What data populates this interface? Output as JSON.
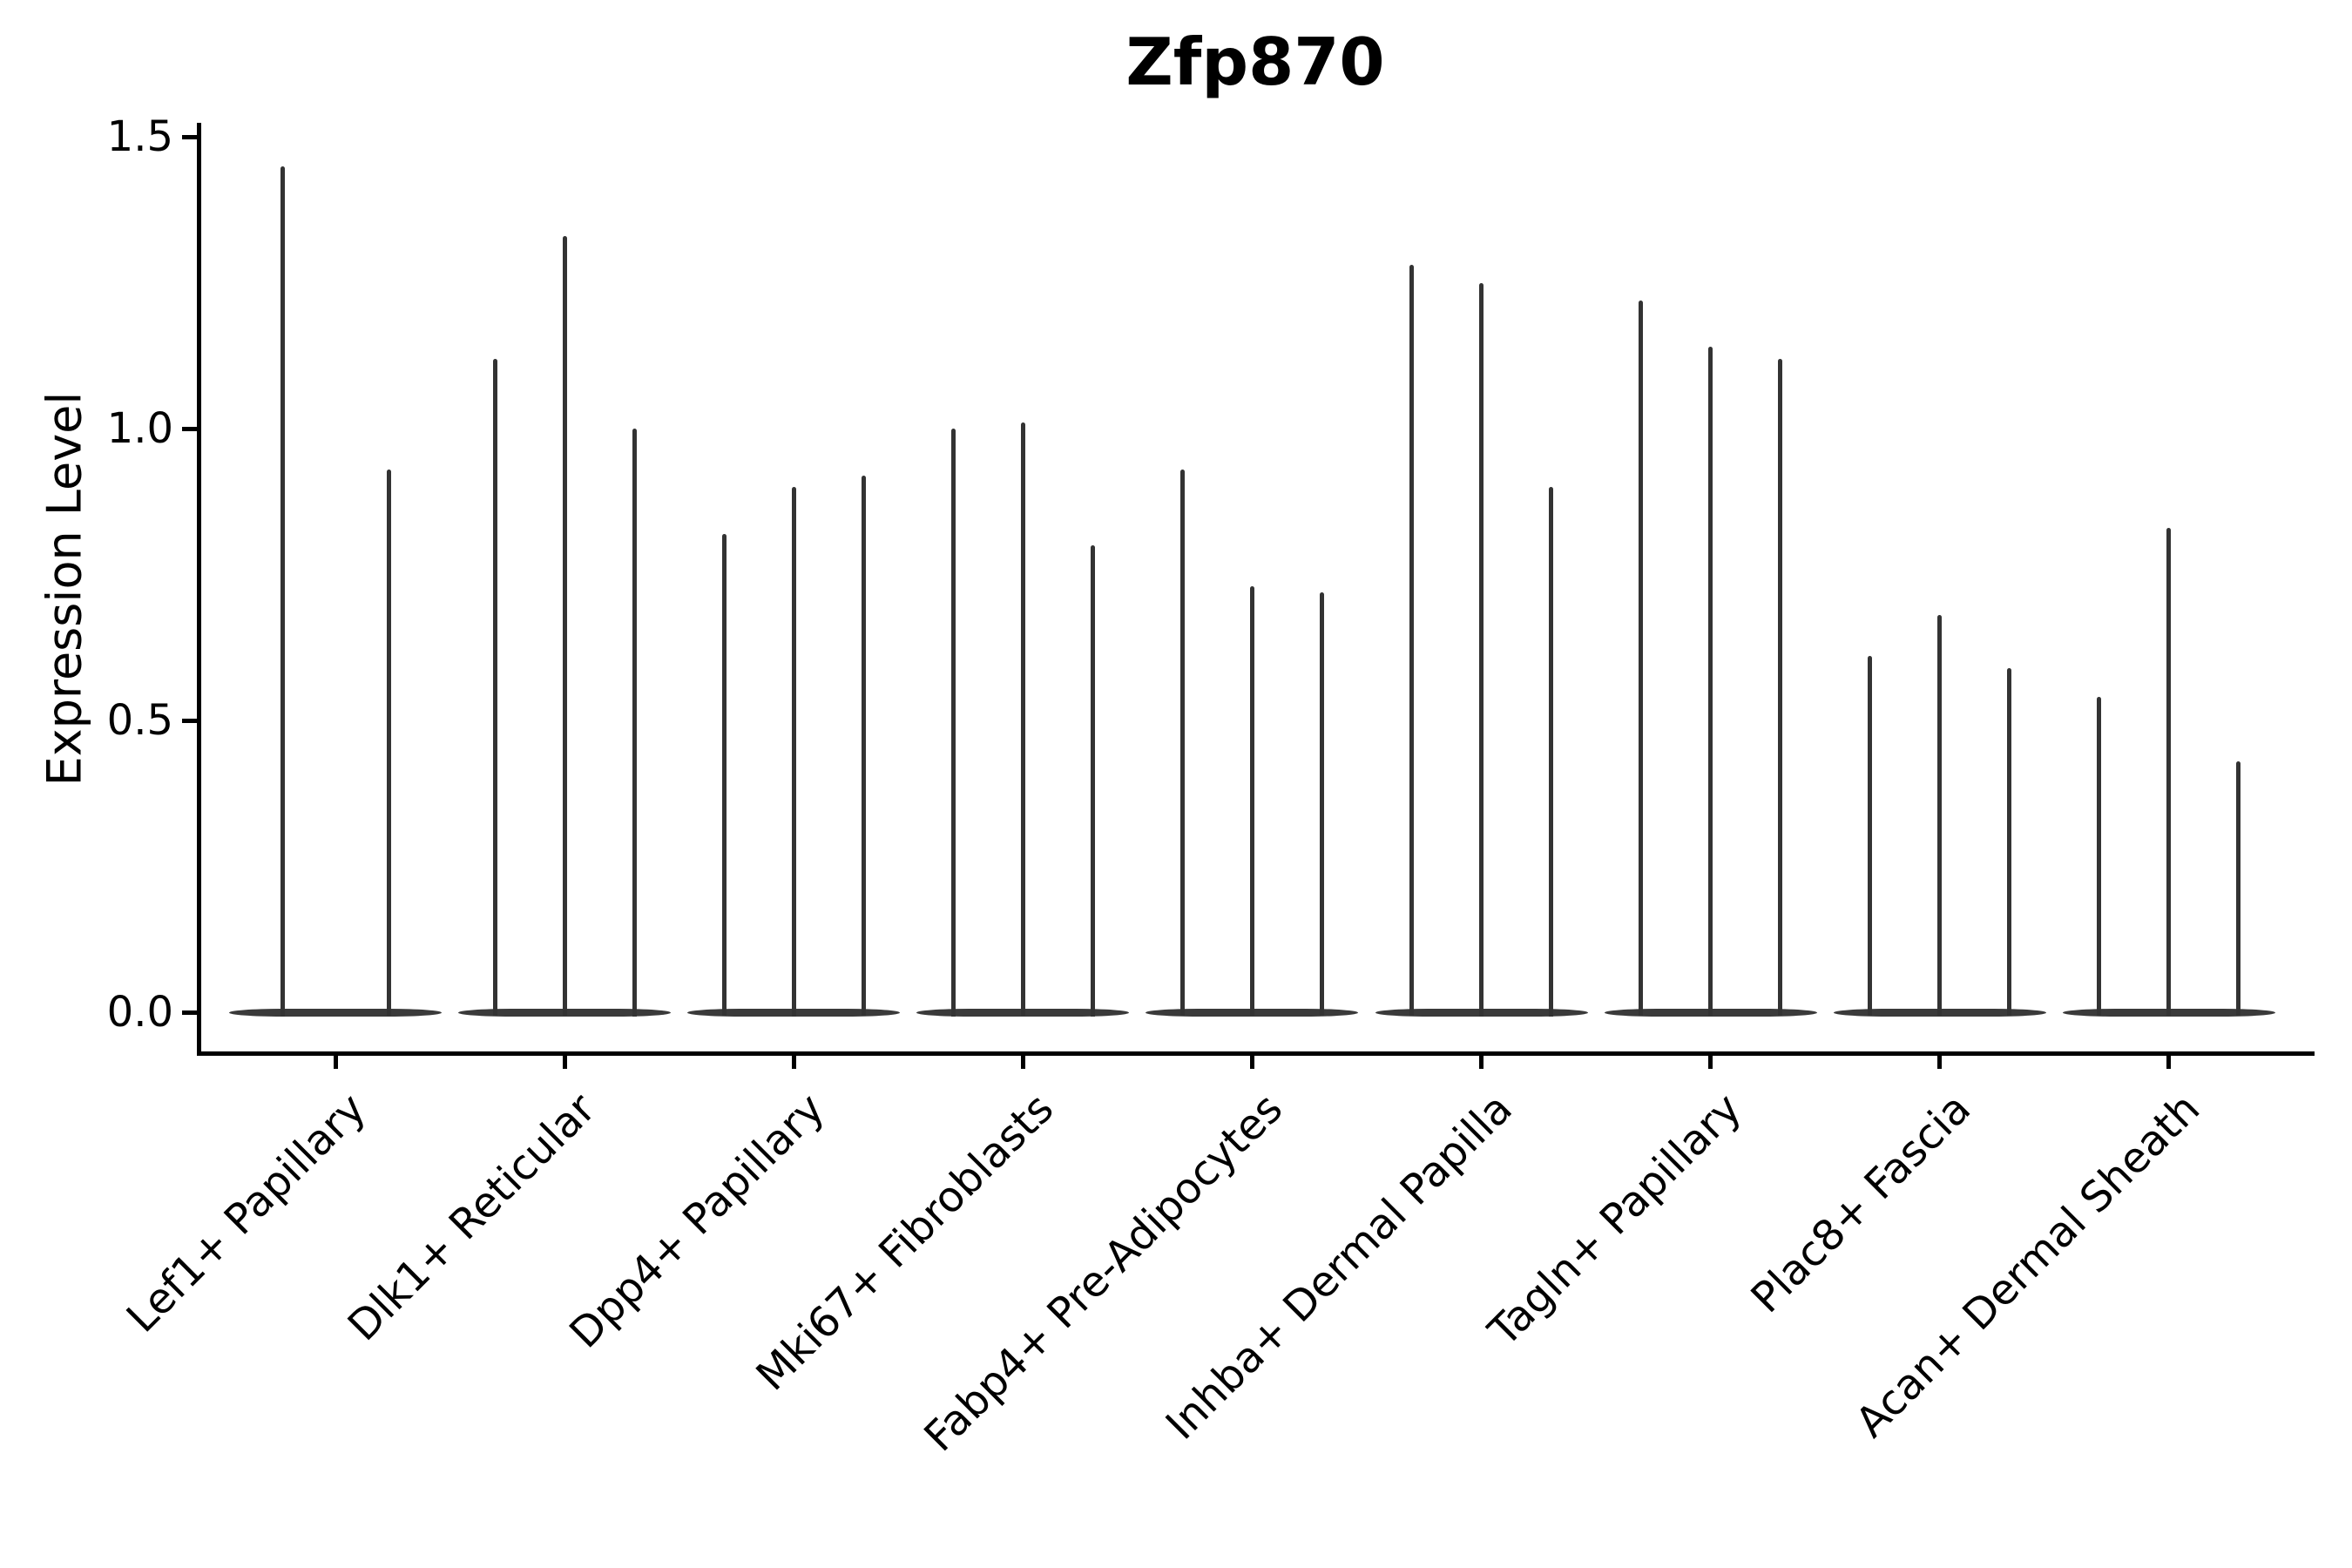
{
  "chart_data": {
    "type": "violin",
    "title": "Zfp870",
    "xlabel": "",
    "ylabel": "Expression Level",
    "ylim": [
      -0.07,
      1.53
    ],
    "yticks": [
      0.0,
      0.5,
      1.0,
      1.5
    ],
    "ytick_labels": [
      "0.0",
      "0.5",
      "1.0",
      "1.5"
    ],
    "grid": false,
    "legend": "none",
    "categories": [
      "Lef1+ Papillary",
      "Dlk1+ Reticular",
      "Dpp4+ Papillary",
      "Mki67+ Fibroblasts",
      "Fabp4+ Pre-Adipocytes",
      "Inhba+ Dermal Papilla",
      "Tagln+ Papillary",
      "Plac8+ Fascia",
      "Acan+ Dermal Sheath"
    ],
    "series": [
      {
        "category": "Lef1+ Papillary",
        "violin_maxima": [
          1.45,
          0.93
        ]
      },
      {
        "category": "Dlk1+ Reticular",
        "violin_maxima": [
          1.12,
          1.33,
          1.0
        ]
      },
      {
        "category": "Dpp4+ Papillary",
        "violin_maxima": [
          0.82,
          0.9,
          0.92
        ]
      },
      {
        "category": "Mki67+ Fibroblasts",
        "violin_maxima": [
          1.0,
          1.01,
          0.8
        ]
      },
      {
        "category": "Fabp4+ Pre-Adipocytes",
        "violin_maxima": [
          0.93,
          0.73,
          0.72
        ]
      },
      {
        "category": "Inhba+ Dermal Papilla",
        "violin_maxima": [
          1.28,
          1.25,
          0.9
        ]
      },
      {
        "category": "Tagln+ Papillary",
        "violin_maxima": [
          1.22,
          1.14,
          1.12
        ]
      },
      {
        "category": "Plac8+ Fascia",
        "violin_maxima": [
          0.61,
          0.68,
          0.59
        ]
      },
      {
        "category": "Acan+ Dermal Sheath",
        "violin_maxima": [
          0.54,
          0.83,
          0.43
        ]
      }
    ],
    "violin_shape_note": "each violin is a wide flat bulge at 0 with a thin density spike rising to its maximum expression value",
    "colors": {
      "violin_spike": "#333333",
      "violin_base": "#3a3a3a",
      "axis": "#000000",
      "text": "#000000",
      "background": "#ffffff"
    }
  }
}
